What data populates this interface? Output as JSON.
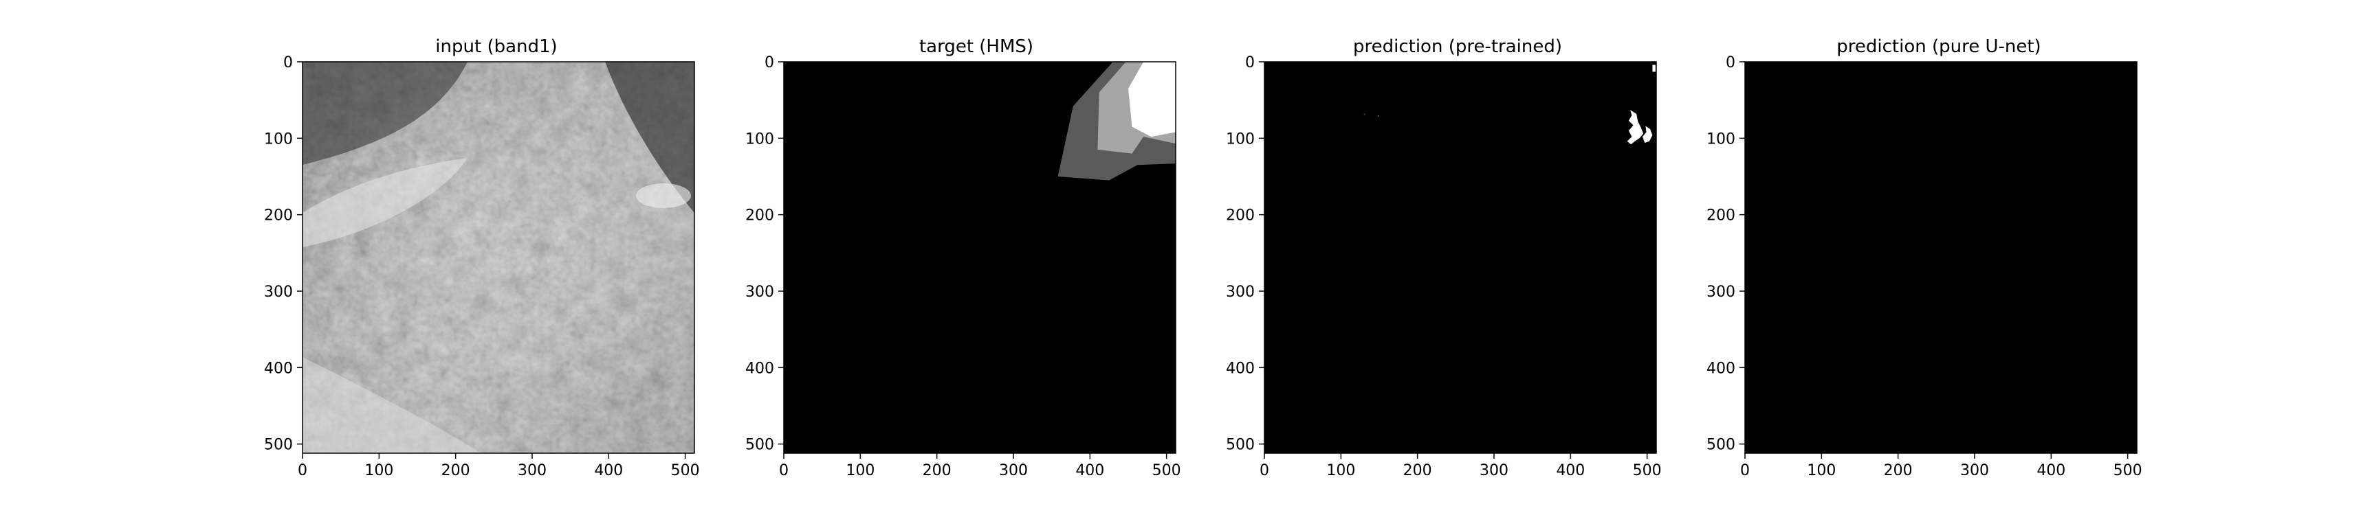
{
  "chart_data": [
    {
      "type": "heatmap",
      "title": "input (band1)",
      "xlim": [
        0,
        512
      ],
      "ylim": [
        512,
        0
      ],
      "xticks": [
        "0",
        "100",
        "200",
        "300",
        "400",
        "500"
      ],
      "yticks": [
        "0",
        "100",
        "200",
        "300",
        "400",
        "500"
      ],
      "xtick_values": [
        0,
        100,
        200,
        300,
        400,
        500
      ],
      "ytick_values": [
        0,
        100,
        200,
        300,
        400,
        500
      ],
      "colormap": "gray",
      "content": "satellite grayscale image",
      "regions": []
    },
    {
      "type": "heatmap",
      "title": "target (HMS)",
      "xlim": [
        0,
        512
      ],
      "ylim": [
        512,
        0
      ],
      "xticks": [
        "0",
        "100",
        "200",
        "300",
        "400",
        "500"
      ],
      "yticks": [
        "0",
        "100",
        "200",
        "300",
        "400",
        "500"
      ],
      "xtick_values": [
        0,
        100,
        200,
        300,
        400,
        500
      ],
      "ytick_values": [
        0,
        100,
        200,
        300,
        400,
        500
      ],
      "colormap": "gray",
      "background": "#000000",
      "regions": [
        {
          "color": "#5a5a5a",
          "points": [
            [
              430,
              0
            ],
            [
              378,
              58
            ],
            [
              358,
              150
            ],
            [
              425,
              155
            ],
            [
              462,
              135
            ],
            [
              512,
              133
            ],
            [
              512,
              0
            ]
          ]
        },
        {
          "color": "#a6a6a6",
          "points": [
            [
              447,
              0
            ],
            [
              412,
              40
            ],
            [
              410,
              115
            ],
            [
              455,
              120
            ],
            [
              470,
              98
            ],
            [
              512,
              107
            ],
            [
              512,
              0
            ]
          ]
        },
        {
          "color": "#ffffff",
          "points": [
            [
              470,
              0
            ],
            [
              450,
              35
            ],
            [
              455,
              85
            ],
            [
              480,
              98
            ],
            [
              512,
              92
            ],
            [
              512,
              0
            ]
          ]
        }
      ]
    },
    {
      "type": "heatmap",
      "title": "prediction (pre-trained)",
      "xlim": [
        0,
        512
      ],
      "ylim": [
        512,
        0
      ],
      "xticks": [
        "0",
        "100",
        "200",
        "300",
        "400",
        "500"
      ],
      "yticks": [
        "0",
        "100",
        "200",
        "300",
        "400",
        "500"
      ],
      "xtick_values": [
        0,
        100,
        200,
        300,
        400,
        500
      ],
      "ytick_values": [
        0,
        100,
        200,
        300,
        400,
        500
      ],
      "colormap": "gray",
      "background": "#000000",
      "regions": [
        {
          "color": "#ffffff",
          "points": [
            [
              478,
              63
            ],
            [
              486,
              68
            ],
            [
              488,
              78
            ],
            [
              492,
              86
            ],
            [
              495,
              94
            ],
            [
              490,
              100
            ],
            [
              484,
              104
            ],
            [
              479,
              108
            ],
            [
              474,
              104
            ],
            [
              480,
              98
            ],
            [
              476,
              90
            ],
            [
              482,
              83
            ],
            [
              476,
              77
            ],
            [
              480,
              70
            ]
          ]
        },
        {
          "color": "#ffffff",
          "points": [
            [
              498,
              84
            ],
            [
              504,
              88
            ],
            [
              507,
              96
            ],
            [
              503,
              104
            ],
            [
              497,
              106
            ],
            [
              494,
              98
            ],
            [
              499,
              92
            ]
          ]
        },
        {
          "color": "#ffffff",
          "points": [
            [
              507,
              4
            ],
            [
              511,
              4
            ],
            [
              511,
              13
            ],
            [
              507,
              13
            ]
          ]
        }
      ]
    },
    {
      "type": "heatmap",
      "title": "prediction (pure U-net)",
      "xlim": [
        0,
        512
      ],
      "ylim": [
        512,
        0
      ],
      "xticks": [
        "0",
        "100",
        "200",
        "300",
        "400",
        "500"
      ],
      "yticks": [
        "0",
        "100",
        "200",
        "300",
        "400",
        "500"
      ],
      "xtick_values": [
        0,
        100,
        200,
        300,
        400,
        500
      ],
      "ytick_values": [
        0,
        100,
        200,
        300,
        400,
        500
      ],
      "colormap": "gray",
      "background": "#000000",
      "regions": []
    }
  ]
}
